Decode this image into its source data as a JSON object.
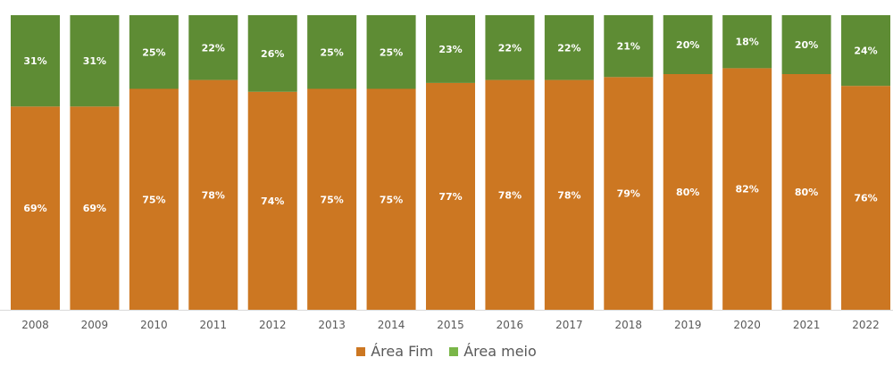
{
  "chart_data": {
    "type": "bar",
    "stacked": true,
    "percent": true,
    "categories": [
      "2008",
      "2009",
      "2010",
      "2011",
      "2012",
      "2013",
      "2014",
      "2015",
      "2016",
      "2017",
      "2018",
      "2019",
      "2020",
      "2021",
      "2022"
    ],
    "series": [
      {
        "name": "Área Fim",
        "color": "#cc7722",
        "values": [
          69,
          69,
          75,
          78,
          74,
          75,
          75,
          77,
          78,
          78,
          79,
          80,
          82,
          80,
          76
        ],
        "labels": [
          "69%",
          "69%",
          "75%",
          "78%",
          "74%",
          "75%",
          "75%",
          "77%",
          "78%",
          "78%",
          "79%",
          "80%",
          "82%",
          "80%",
          "76%"
        ]
      },
      {
        "name": "Área meio",
        "color": "#5e8c34",
        "legend_color": "#7ab648",
        "values": [
          31,
          31,
          25,
          22,
          26,
          25,
          25,
          23,
          22,
          22,
          21,
          20,
          18,
          20,
          24
        ],
        "labels": [
          "31%",
          "31%",
          "25%",
          "22%",
          "26%",
          "25%",
          "25%",
          "23%",
          "22%",
          "22%",
          "21%",
          "20%",
          "18%",
          "20%",
          "24%"
        ]
      }
    ],
    "ylim": [
      0,
      100
    ],
    "grid": false,
    "legend": "bottom"
  }
}
